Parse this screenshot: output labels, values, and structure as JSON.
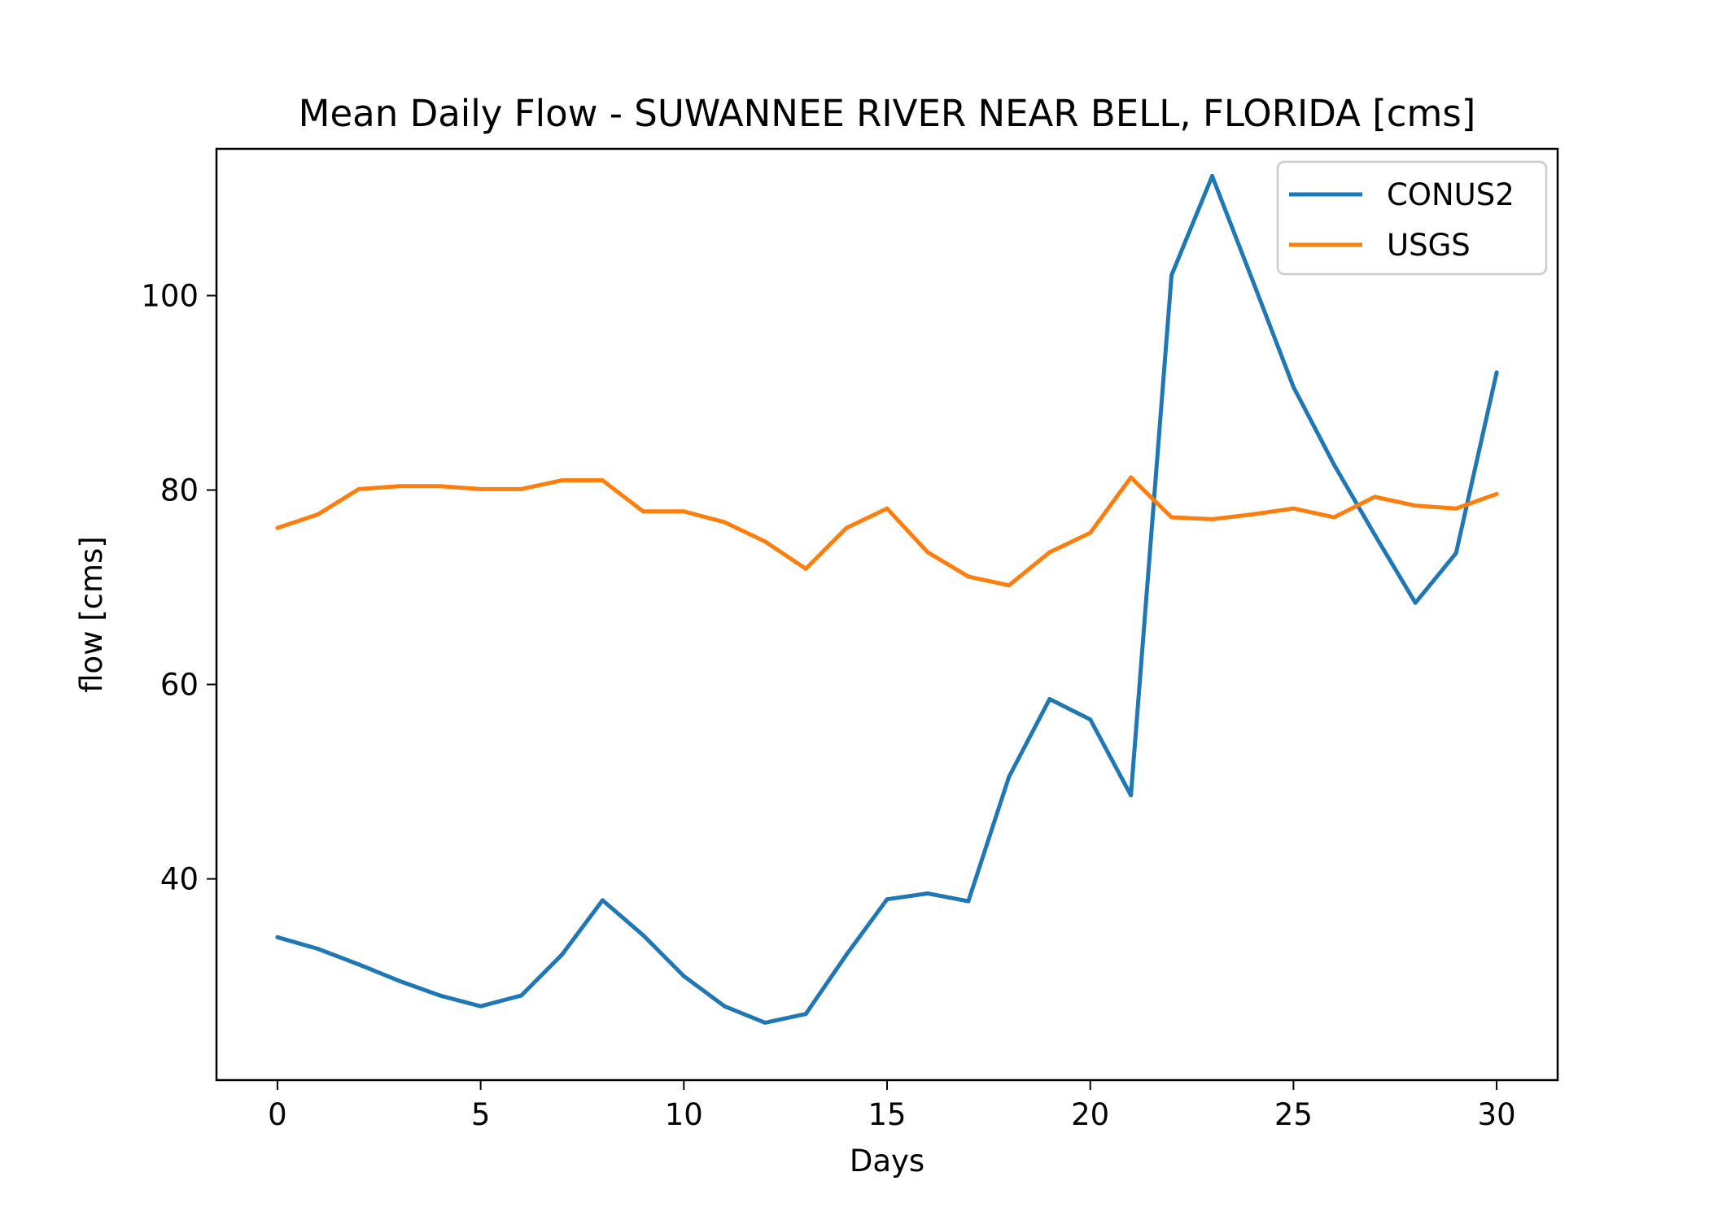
{
  "chart_data": {
    "type": "line",
    "title": "Mean Daily Flow - SUWANNEE RIVER NEAR BELL, FLORIDA [cms]",
    "xlabel": "Days",
    "ylabel": "flow [cms]",
    "xlim": [
      -1.5,
      31.5
    ],
    "ylim": [
      19.3,
      115.1
    ],
    "xticks": [
      0,
      5,
      10,
      15,
      20,
      25,
      30
    ],
    "yticks": [
      40,
      60,
      80,
      100
    ],
    "grid": false,
    "legend_position": "upper right",
    "x": [
      0,
      1,
      2,
      3,
      4,
      5,
      6,
      7,
      8,
      9,
      10,
      11,
      12,
      13,
      14,
      15,
      16,
      17,
      18,
      19,
      20,
      21,
      22,
      23,
      24,
      25,
      26,
      27,
      28,
      29,
      30
    ],
    "series": [
      {
        "name": "CONUS2",
        "color": "#1f77b4",
        "values": [
          34.0,
          32.8,
          31.2,
          29.5,
          28.0,
          26.9,
          28.0,
          32.2,
          37.8,
          34.2,
          30.0,
          26.9,
          25.2,
          26.1,
          32.2,
          37.9,
          38.5,
          37.7,
          50.5,
          58.5,
          56.4,
          48.6,
          102.1,
          112.3,
          101.5,
          90.6,
          82.6,
          75.4,
          68.4,
          73.5,
          92.1
        ]
      },
      {
        "name": "USGS",
        "color": "#ff7f0e",
        "values": [
          76.1,
          77.5,
          80.1,
          80.4,
          80.4,
          80.1,
          80.1,
          81.0,
          81.0,
          77.8,
          77.8,
          76.7,
          74.7,
          71.9,
          76.1,
          78.1,
          73.6,
          71.1,
          70.2,
          73.6,
          75.6,
          81.3,
          77.2,
          77.0,
          77.5,
          78.1,
          77.2,
          79.3,
          78.4,
          78.1,
          79.6
        ]
      }
    ]
  }
}
